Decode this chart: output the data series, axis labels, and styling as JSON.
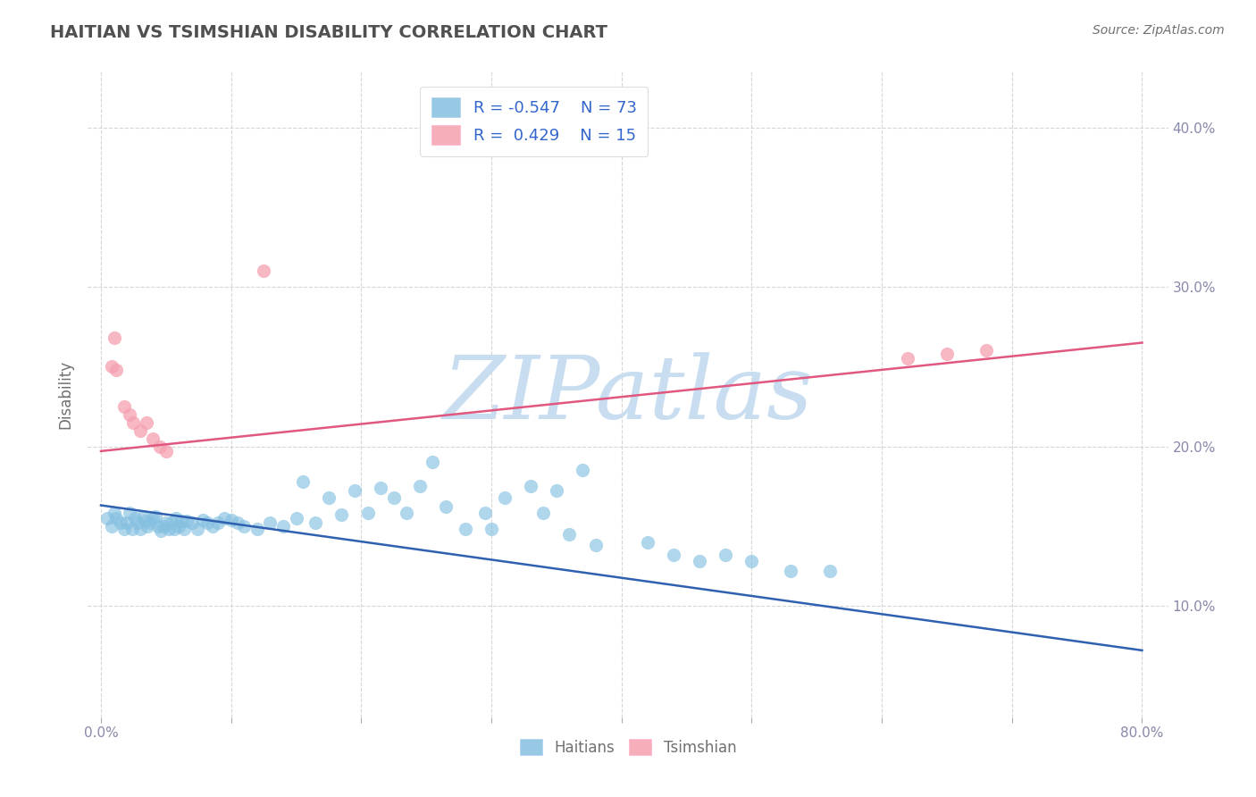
{
  "title": "HAITIAN VS TSIMSHIAN DISABILITY CORRELATION CHART",
  "source": "Source: ZipAtlas.com",
  "ylabel": "Disability",
  "xlim": [
    -0.01,
    0.82
  ],
  "ylim": [
    0.03,
    0.435
  ],
  "xticks": [
    0.0,
    0.1,
    0.2,
    0.3,
    0.4,
    0.5,
    0.6,
    0.7,
    0.8
  ],
  "yticks_right": [
    0.1,
    0.2,
    0.3,
    0.4
  ],
  "xticklabels": [
    "0.0%",
    "",
    "",
    "",
    "",
    "",
    "",
    "",
    "80.0%"
  ],
  "yticklabels_right": [
    "10.0%",
    "20.0%",
    "30.0%",
    "40.0%"
  ],
  "legend_r1": "R = -0.547",
  "legend_n1": "N = 73",
  "legend_r2": "R =  0.429",
  "legend_n2": "N = 15",
  "blue_color": "#85c0e0",
  "pink_color": "#f5a0b0",
  "blue_line_color": "#3060b0",
  "pink_line_color": "#e05880",
  "blue_points": [
    [
      0.005,
      0.155
    ],
    [
      0.008,
      0.15
    ],
    [
      0.01,
      0.158
    ],
    [
      0.012,
      0.155
    ],
    [
      0.015,
      0.152
    ],
    [
      0.018,
      0.148
    ],
    [
      0.02,
      0.152
    ],
    [
      0.022,
      0.158
    ],
    [
      0.024,
      0.148
    ],
    [
      0.026,
      0.155
    ],
    [
      0.028,
      0.152
    ],
    [
      0.03,
      0.148
    ],
    [
      0.032,
      0.156
    ],
    [
      0.034,
      0.153
    ],
    [
      0.036,
      0.15
    ],
    [
      0.038,
      0.152
    ],
    [
      0.04,
      0.155
    ],
    [
      0.042,
      0.156
    ],
    [
      0.044,
      0.15
    ],
    [
      0.046,
      0.147
    ],
    [
      0.048,
      0.15
    ],
    [
      0.05,
      0.152
    ],
    [
      0.052,
      0.148
    ],
    [
      0.054,
      0.152
    ],
    [
      0.056,
      0.148
    ],
    [
      0.058,
      0.155
    ],
    [
      0.06,
      0.15
    ],
    [
      0.062,
      0.153
    ],
    [
      0.064,
      0.148
    ],
    [
      0.066,
      0.153
    ],
    [
      0.07,
      0.152
    ],
    [
      0.074,
      0.148
    ],
    [
      0.078,
      0.154
    ],
    [
      0.082,
      0.152
    ],
    [
      0.086,
      0.15
    ],
    [
      0.09,
      0.152
    ],
    [
      0.095,
      0.155
    ],
    [
      0.1,
      0.154
    ],
    [
      0.105,
      0.152
    ],
    [
      0.11,
      0.15
    ],
    [
      0.12,
      0.148
    ],
    [
      0.13,
      0.152
    ],
    [
      0.14,
      0.15
    ],
    [
      0.15,
      0.155
    ],
    [
      0.155,
      0.178
    ],
    [
      0.165,
      0.152
    ],
    [
      0.175,
      0.168
    ],
    [
      0.185,
      0.157
    ],
    [
      0.195,
      0.172
    ],
    [
      0.205,
      0.158
    ],
    [
      0.215,
      0.174
    ],
    [
      0.225,
      0.168
    ],
    [
      0.235,
      0.158
    ],
    [
      0.245,
      0.175
    ],
    [
      0.255,
      0.19
    ],
    [
      0.265,
      0.162
    ],
    [
      0.28,
      0.148
    ],
    [
      0.295,
      0.158
    ],
    [
      0.31,
      0.168
    ],
    [
      0.33,
      0.175
    ],
    [
      0.35,
      0.172
    ],
    [
      0.37,
      0.185
    ],
    [
      0.34,
      0.158
    ],
    [
      0.3,
      0.148
    ],
    [
      0.36,
      0.145
    ],
    [
      0.38,
      0.138
    ],
    [
      0.42,
      0.14
    ],
    [
      0.44,
      0.132
    ],
    [
      0.46,
      0.128
    ],
    [
      0.48,
      0.132
    ],
    [
      0.5,
      0.128
    ],
    [
      0.53,
      0.122
    ],
    [
      0.56,
      0.122
    ]
  ],
  "pink_points": [
    [
      0.008,
      0.25
    ],
    [
      0.012,
      0.248
    ],
    [
      0.018,
      0.225
    ],
    [
      0.022,
      0.22
    ],
    [
      0.025,
      0.215
    ],
    [
      0.03,
      0.21
    ],
    [
      0.035,
      0.215
    ],
    [
      0.04,
      0.205
    ],
    [
      0.045,
      0.2
    ],
    [
      0.05,
      0.197
    ],
    [
      0.01,
      0.268
    ],
    [
      0.62,
      0.255
    ],
    [
      0.65,
      0.258
    ],
    [
      0.68,
      0.26
    ],
    [
      0.125,
      0.31
    ]
  ],
  "blue_line_x": [
    0.0,
    0.8
  ],
  "blue_line_y": [
    0.163,
    0.072
  ],
  "pink_line_x": [
    0.0,
    0.8
  ],
  "pink_line_y": [
    0.197,
    0.265
  ],
  "watermark_text": "ZIPatlas",
  "watermark_color": "#c8ddf0",
  "background_color": "#ffffff",
  "grid_color": "#cccccc",
  "title_color": "#505050",
  "axis_label_color": "#707070",
  "tick_color": "#8888aa",
  "legend_text_color": "#3366cc",
  "figsize": [
    14.06,
    8.92
  ],
  "dpi": 100
}
